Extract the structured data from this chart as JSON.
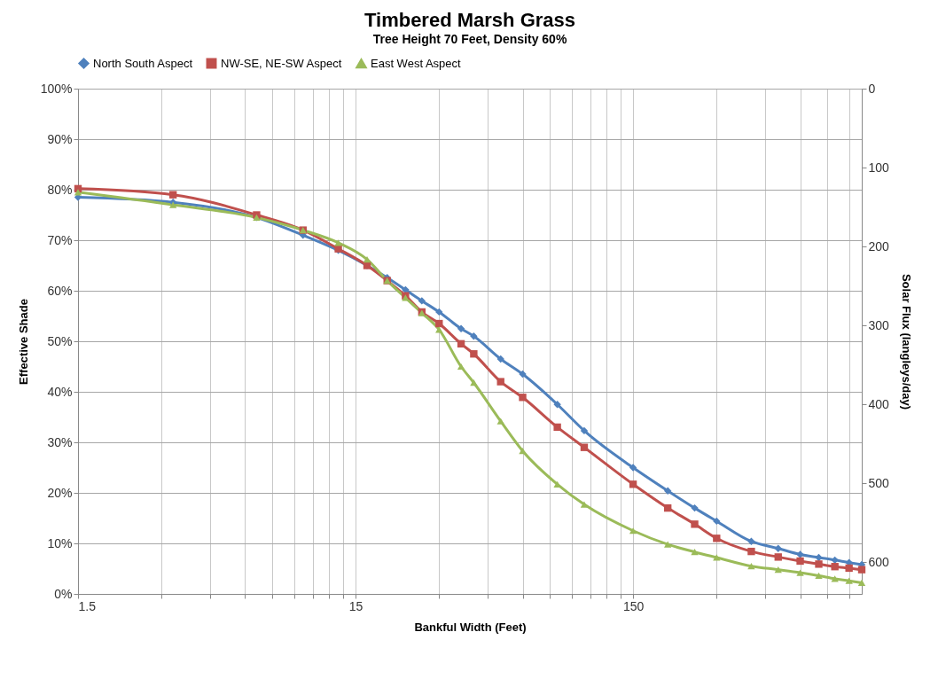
{
  "chart_data": {
    "type": "line",
    "title": "Timbered Marsh Grass",
    "subtitle": "Tree Height 70 Feet, Density 60%",
    "xlabel": "Bankful Width (Feet)",
    "ylabel": "Effective Shade",
    "y2label": "Solar Flux (langleys/day)",
    "x": [
      1.5,
      3.3,
      6.6,
      9.7,
      13,
      16.5,
      19.5,
      22.7,
      26,
      30,
      36,
      40,
      50,
      60,
      80,
      100,
      150,
      200,
      250,
      300,
      400,
      500,
      600,
      700,
      800,
      900,
      1000
    ],
    "series": [
      {
        "name": "North South Aspect",
        "color": "#4f81bd",
        "marker": "diamond",
        "values": [
          78.5,
          77.5,
          74.5,
          71,
          68,
          65,
          62.6,
          60.2,
          58,
          55.8,
          52.5,
          51,
          46.5,
          43.5,
          37.5,
          32.3,
          25,
          20.4,
          17,
          14.4,
          10.4,
          9,
          7.8,
          7.2,
          6.7,
          6.2,
          5.8
        ]
      },
      {
        "name": "NW-SE, NE-SW Aspect",
        "color": "#c0504d",
        "marker": "square",
        "values": [
          80.2,
          79,
          75,
          72,
          68.3,
          65,
          62,
          59,
          55.8,
          53.5,
          49.5,
          47.5,
          42,
          38.9,
          33,
          29,
          21.7,
          17,
          13.8,
          11,
          8.4,
          7.3,
          6.5,
          5.9,
          5.4,
          5.1,
          4.8
        ]
      },
      {
        "name": "East West Aspect",
        "color": "#9bbb59",
        "marker": "triangle",
        "values": [
          79.5,
          77,
          74.5,
          72,
          69.5,
          66.2,
          62,
          58.6,
          55.6,
          52.3,
          45,
          41.8,
          34.2,
          28.3,
          21.7,
          17.7,
          12.5,
          9.8,
          8.3,
          7.2,
          5.5,
          4.8,
          4.2,
          3.6,
          3,
          2.6,
          2.2
        ]
      }
    ],
    "log": "x",
    "xlim": [
      1.5,
      1000
    ],
    "xticks": [
      1.5,
      {
        "value": 3,
        "label": null
      },
      {
        "value": 4.5,
        "label": null
      },
      {
        "value": 6,
        "label": null
      },
      {
        "value": 7.5,
        "label": null
      },
      {
        "value": 9,
        "label": null
      },
      {
        "value": 10.5,
        "label": null
      },
      {
        "value": 12,
        "label": null
      },
      {
        "value": 13.5,
        "label": null
      },
      15,
      {
        "value": 30,
        "label": null
      },
      {
        "value": 45,
        "label": null
      },
      {
        "value": 60,
        "label": null
      },
      {
        "value": 75,
        "label": null
      },
      {
        "value": 90,
        "label": null
      },
      {
        "value": 105,
        "label": null
      },
      {
        "value": 120,
        "label": null
      },
      {
        "value": 135,
        "label": null
      },
      150,
      {
        "value": 300,
        "label": null
      },
      {
        "value": 450,
        "label": null
      },
      {
        "value": 600,
        "label": null
      },
      {
        "value": 750,
        "label": null
      },
      {
        "value": 900,
        "label": null
      }
    ],
    "ylim": [
      0,
      100
    ],
    "yticks": [
      {
        "value": 0,
        "label": "0%"
      },
      {
        "value": 10,
        "label": "10%"
      },
      {
        "value": 20,
        "label": "20%"
      },
      {
        "value": 30,
        "label": "30%"
      },
      {
        "value": 40,
        "label": "40%"
      },
      {
        "value": 50,
        "label": "50%"
      },
      {
        "value": 60,
        "label": "60%"
      },
      {
        "value": 70,
        "label": "70%"
      },
      {
        "value": 80,
        "label": "80%"
      },
      {
        "value": 90,
        "label": "90%"
      },
      {
        "value": 100,
        "label": "100%"
      }
    ],
    "y2lim": [
      640,
      0
    ],
    "y2ticks": [
      0,
      100,
      200,
      300,
      400,
      500,
      600
    ],
    "grid": true,
    "legend": "top",
    "line_style": "solid"
  }
}
